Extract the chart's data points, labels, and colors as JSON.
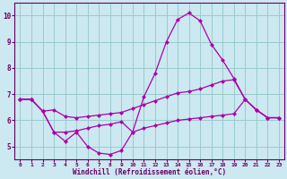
{
  "xlabel": "Windchill (Refroidissement éolien,°C)",
  "bg_color": "#cce8f0",
  "line_color": "#aa00aa",
  "grid_color": "#99cccc",
  "axis_color": "#660066",
  "tick_color": "#660066",
  "xlim": [
    -0.5,
    23.5
  ],
  "ylim": [
    4.5,
    10.5
  ],
  "yticks": [
    5,
    6,
    7,
    8,
    9,
    10
  ],
  "xticks": [
    0,
    1,
    2,
    3,
    4,
    5,
    6,
    7,
    8,
    9,
    10,
    11,
    12,
    13,
    14,
    15,
    16,
    17,
    18,
    19,
    20,
    21,
    22,
    23
  ],
  "line1_x": [
    0,
    1,
    2,
    3,
    4,
    5,
    6,
    7,
    8,
    9,
    10,
    11,
    12,
    13,
    14,
    15,
    16,
    17,
    18,
    19,
    20,
    21,
    22,
    23
  ],
  "line1_y": [
    6.8,
    6.8,
    6.35,
    5.55,
    5.2,
    5.55,
    5.0,
    4.75,
    4.7,
    4.85,
    5.55,
    6.9,
    7.8,
    9.0,
    9.85,
    10.1,
    9.8,
    8.9,
    8.3,
    7.6,
    6.8,
    6.4,
    6.1,
    6.1
  ],
  "line2_x": [
    0,
    1,
    2,
    3,
    4,
    5,
    6,
    7,
    8,
    9,
    10,
    11,
    12,
    13,
    14,
    15,
    16,
    17,
    18,
    19,
    20,
    21,
    22,
    23
  ],
  "line2_y": [
    6.8,
    6.8,
    6.35,
    6.4,
    6.15,
    6.1,
    6.15,
    6.2,
    6.25,
    6.3,
    6.45,
    6.6,
    6.75,
    6.9,
    7.05,
    7.1,
    7.2,
    7.35,
    7.5,
    7.55,
    6.8,
    6.4,
    6.1,
    6.1
  ],
  "line3_x": [
    0,
    1,
    2,
    3,
    4,
    5,
    6,
    7,
    8,
    9,
    10,
    11,
    12,
    13,
    14,
    15,
    16,
    17,
    18,
    19,
    20,
    21,
    22,
    23
  ],
  "line3_y": [
    6.8,
    6.8,
    6.35,
    5.55,
    5.55,
    5.6,
    5.7,
    5.8,
    5.85,
    5.95,
    5.55,
    5.7,
    5.8,
    5.9,
    6.0,
    6.05,
    6.1,
    6.15,
    6.2,
    6.25,
    6.8,
    6.4,
    6.1,
    6.1
  ]
}
